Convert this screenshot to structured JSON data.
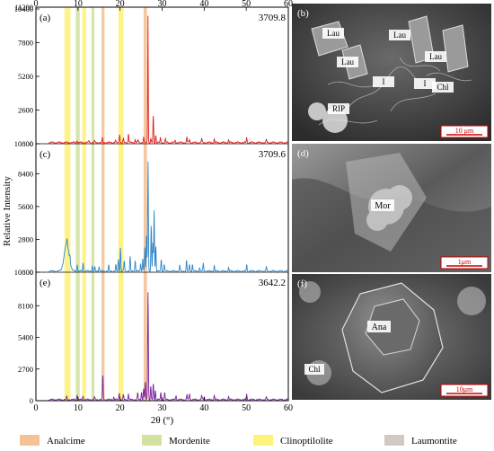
{
  "top_axis_ticks": [
    "0",
    "10",
    "20",
    "30",
    "40",
    "50",
    "60"
  ],
  "bottom_axis_ticks": [
    "0",
    "10",
    "20",
    "30",
    "40",
    "50",
    "60"
  ],
  "xlabel": "2θ (°)",
  "ylabel": "Relative Intensity",
  "legend": [
    {
      "label": "Analcime",
      "color": "#f5c296"
    },
    {
      "label": "Mordenite",
      "color": "#d2e3a1"
    },
    {
      "label": "Clinoptilolite",
      "color": "#fff27a"
    },
    {
      "label": "Laumontite",
      "color": "#d1c9c3"
    }
  ],
  "bands": [
    {
      "mineral": "Clinoptilolite",
      "x": [
        6.8,
        8.2
      ]
    },
    {
      "mineral": "Mordenite",
      "x": [
        9.5,
        10.4
      ]
    },
    {
      "mineral": "Clinoptilolite",
      "x": [
        11.0,
        11.9
      ]
    },
    {
      "mineral": "Mordenite",
      "x": [
        13.2,
        13.9
      ]
    },
    {
      "mineral": "Analcime",
      "x": [
        15.6,
        16.3
      ]
    },
    {
      "mineral": "Clinoptilolite",
      "x": [
        19.6,
        20.8
      ]
    },
    {
      "mineral": "Analcime",
      "x": [
        25.6,
        26.4
      ]
    }
  ],
  "chart_data": [
    {
      "type": "line",
      "panel": "(a)",
      "sample": "3709.8",
      "color": "#e01f1f",
      "ylim": [
        0,
        10400
      ],
      "yticks": [
        "0",
        "2600",
        "5200",
        "7800",
        "10400"
      ],
      "bottom_tick_label": "11200",
      "peaks": [
        [
          9.8,
          180
        ],
        [
          12.6,
          160
        ],
        [
          13.9,
          140
        ],
        [
          15.8,
          300
        ],
        [
          18.9,
          160
        ],
        [
          19.9,
          680
        ],
        [
          20.8,
          260
        ],
        [
          22.0,
          680
        ],
        [
          23.6,
          240
        ],
        [
          24.3,
          200
        ],
        [
          25.6,
          380
        ],
        [
          26.6,
          1580
        ],
        [
          27.3,
          260
        ],
        [
          27.9,
          2000
        ],
        [
          28.5,
          560
        ],
        [
          29.6,
          320
        ],
        [
          30.8,
          260
        ],
        [
          33.1,
          180
        ],
        [
          35.9,
          400
        ],
        [
          36.5,
          260
        ],
        [
          39.4,
          300
        ],
        [
          42.4,
          260
        ],
        [
          45.8,
          200
        ],
        [
          50.1,
          340
        ],
        [
          54.8,
          220
        ]
      ],
      "peak_main": [
        [
          26.65,
          8500
        ]
      ]
    },
    {
      "type": "line",
      "panel": "(c)",
      "sample": "3709.6",
      "color": "#2f86c9",
      "ylim": [
        0,
        10800
      ],
      "yticks": [
        "0",
        "2800",
        "5600",
        "8400"
      ],
      "bottom_tick_label": "10800",
      "peaks": [
        [
          7.4,
          380
        ],
        [
          8.1,
          500
        ],
        [
          9.8,
          600
        ],
        [
          11.2,
          700
        ],
        [
          13.4,
          420
        ],
        [
          14.0,
          300
        ],
        [
          15.0,
          380
        ],
        [
          17.3,
          500
        ],
        [
          19.0,
          520
        ],
        [
          19.6,
          1000
        ],
        [
          20.1,
          2000
        ],
        [
          21.0,
          880
        ],
        [
          22.4,
          1200
        ],
        [
          23.6,
          900
        ],
        [
          24.9,
          700
        ],
        [
          25.4,
          1100
        ],
        [
          25.9,
          2000
        ],
        [
          26.3,
          3000
        ],
        [
          26.65,
          9400
        ],
        [
          27.4,
          3800
        ],
        [
          27.8,
          2400
        ],
        [
          28.1,
          5200
        ],
        [
          28.5,
          2100
        ],
        [
          29.8,
          1000
        ],
        [
          30.5,
          600
        ],
        [
          34.2,
          500
        ],
        [
          35.8,
          880
        ],
        [
          36.5,
          600
        ],
        [
          37.2,
          600
        ],
        [
          38.9,
          300
        ],
        [
          39.8,
          700
        ],
        [
          42.4,
          450
        ],
        [
          45.8,
          300
        ],
        [
          50.1,
          550
        ],
        [
          54.8,
          350
        ]
      ],
      "hump": {
        "center": 7.3,
        "width": 0.8,
        "height": 2350
      }
    },
    {
      "type": "line",
      "panel": "(e)",
      "sample": "3642.2",
      "color": "#7a1f9a",
      "ylim": [
        0,
        10800
      ],
      "yticks": [
        "0",
        "2700",
        "5400",
        "8100"
      ],
      "bottom_tick_label": "10800",
      "peaks": [
        [
          7.3,
          240
        ],
        [
          9.8,
          450
        ],
        [
          11.2,
          280
        ],
        [
          13.9,
          220
        ],
        [
          15.9,
          2050
        ],
        [
          18.5,
          200
        ],
        [
          19.8,
          600
        ],
        [
          20.8,
          380
        ],
        [
          22.0,
          480
        ],
        [
          24.2,
          560
        ],
        [
          25.1,
          640
        ],
        [
          25.6,
          900
        ],
        [
          26.0,
          1500
        ],
        [
          26.65,
          9200
        ],
        [
          27.3,
          1100
        ],
        [
          27.9,
          1300
        ],
        [
          28.4,
          800
        ],
        [
          29.7,
          600
        ],
        [
          30.6,
          600
        ],
        [
          33.3,
          350
        ],
        [
          35.9,
          400
        ],
        [
          36.5,
          520
        ],
        [
          39.4,
          350
        ],
        [
          40.0,
          250
        ],
        [
          42.4,
          340
        ],
        [
          45.8,
          250
        ],
        [
          50.1,
          420
        ],
        [
          54.8,
          220
        ]
      ]
    }
  ],
  "sem_panels": [
    {
      "tag": "(b)",
      "labels": [
        {
          "t": "Lau"
        },
        {
          "t": "Lau"
        },
        {
          "t": "Lau"
        },
        {
          "t": "Lau"
        },
        {
          "t": "I"
        },
        {
          "t": "I"
        },
        {
          "t": "Chl"
        },
        {
          "t": "RIP"
        }
      ],
      "scale": "10 μm"
    },
    {
      "tag": "(d)",
      "labels": [
        {
          "t": "Mor"
        }
      ],
      "scale": "1μm"
    },
    {
      "tag": "(f)",
      "labels": [
        {
          "t": "Ana"
        },
        {
          "t": "Chl"
        }
      ],
      "scale": "10μm"
    }
  ]
}
